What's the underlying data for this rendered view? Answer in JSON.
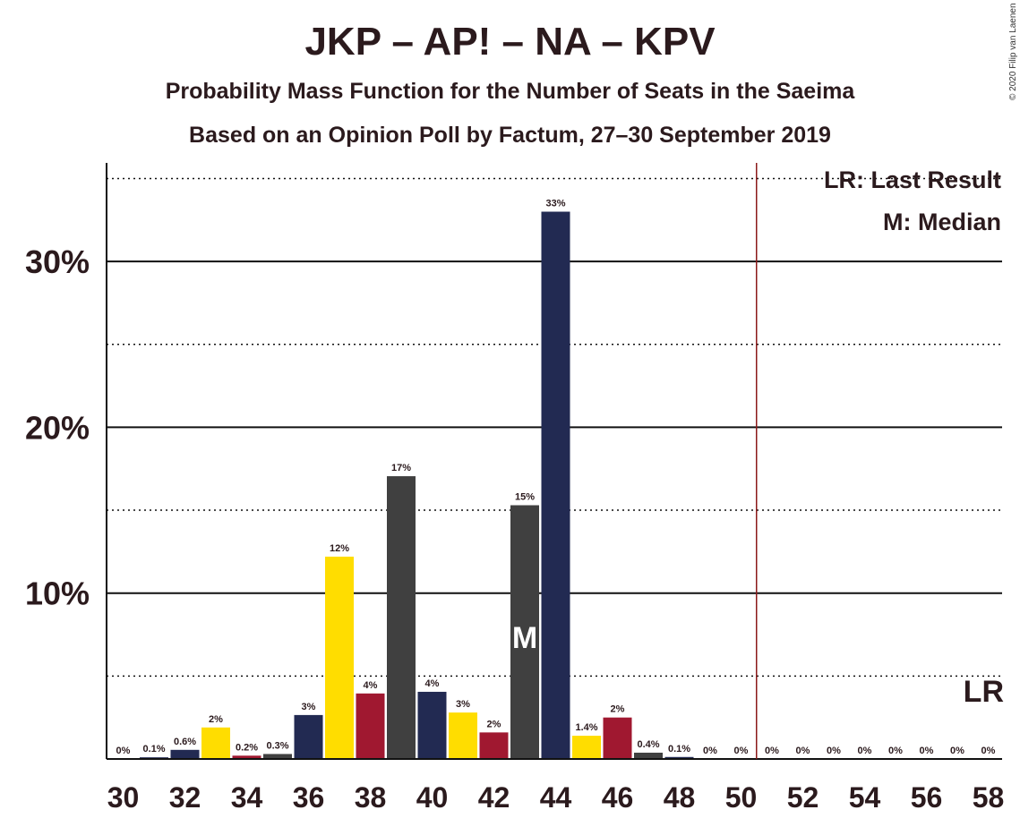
{
  "header": {
    "title": "JKP – AP! – NA – KPV",
    "subtitle1": "Probability Mass Function for the Number of Seats in the Saeima",
    "subtitle2": "Based on an Opinion Poll by Factum, 27–30 September 2019",
    "copyright": "© 2020 Filip van Laenen"
  },
  "legend": {
    "lr": "LR: Last Result",
    "m": "M: Median"
  },
  "markers": {
    "median_label": "M",
    "median_seat": 43,
    "last_result_label": "LR",
    "last_result_seat": 58,
    "majority_line_seat": 50.5
  },
  "colors": {
    "navy": "#222a52",
    "yellow": "#ffdd00",
    "crimson": "#a01830",
    "gray": "#404040",
    "majority_line": "#8b1a1a",
    "text": "#2b1a1d"
  },
  "chart_data": {
    "type": "bar",
    "x": [
      30,
      31,
      32,
      33,
      34,
      35,
      36,
      37,
      38,
      39,
      40,
      41,
      42,
      43,
      44,
      45,
      46,
      47,
      48,
      49,
      50,
      51,
      52,
      53,
      54,
      55,
      56,
      57,
      58
    ],
    "values": [
      0,
      0.1,
      0.6,
      2,
      0.2,
      0.3,
      3,
      12,
      4,
      17,
      4,
      3,
      2,
      15,
      33,
      1.4,
      2,
      0.4,
      0.1,
      0,
      0,
      0,
      0,
      0,
      0,
      0,
      0,
      0,
      0
    ],
    "heights": [
      0,
      0.1,
      0.55,
      1.9,
      0.2,
      0.3,
      2.65,
      12.2,
      3.95,
      17.05,
      4.05,
      2.8,
      1.6,
      15.3,
      33.0,
      1.4,
      2.5,
      0.38,
      0.12,
      0,
      0,
      0,
      0,
      0,
      0,
      0,
      0,
      0,
      0
    ],
    "labels": [
      "0%",
      "0.1%",
      "0.6%",
      "2%",
      "0.2%",
      "0.3%",
      "3%",
      "12%",
      "4%",
      "17%",
      "4%",
      "3%",
      "2%",
      "15%",
      "33%",
      "1.4%",
      "2%",
      "0.4%",
      "0.1%",
      "0%",
      "0%",
      "0%",
      "0%",
      "0%",
      "0%",
      "0%",
      "0%",
      "0%",
      "0%"
    ],
    "bar_colors": [
      "navy",
      "navy",
      "navy",
      "yellow",
      "crimson",
      "gray",
      "navy",
      "yellow",
      "crimson",
      "gray",
      "navy",
      "yellow",
      "crimson",
      "gray",
      "navy",
      "yellow",
      "crimson",
      "gray",
      "navy",
      "yellow",
      "crimson",
      "gray",
      "navy",
      "yellow",
      "crimson",
      "gray",
      "navy",
      "yellow",
      "crimson"
    ],
    "x_tick_labels": [
      "30",
      "32",
      "34",
      "36",
      "38",
      "40",
      "42",
      "44",
      "46",
      "48",
      "50",
      "52",
      "54",
      "56",
      "58"
    ],
    "y_ticks": [
      10,
      20,
      30
    ],
    "y_tick_labels": [
      "10%",
      "20%",
      "30%"
    ],
    "ylim": [
      0,
      36
    ],
    "xlabel": "",
    "ylabel": "",
    "grid": "solid at 10% steps, dotted at 5% steps"
  }
}
